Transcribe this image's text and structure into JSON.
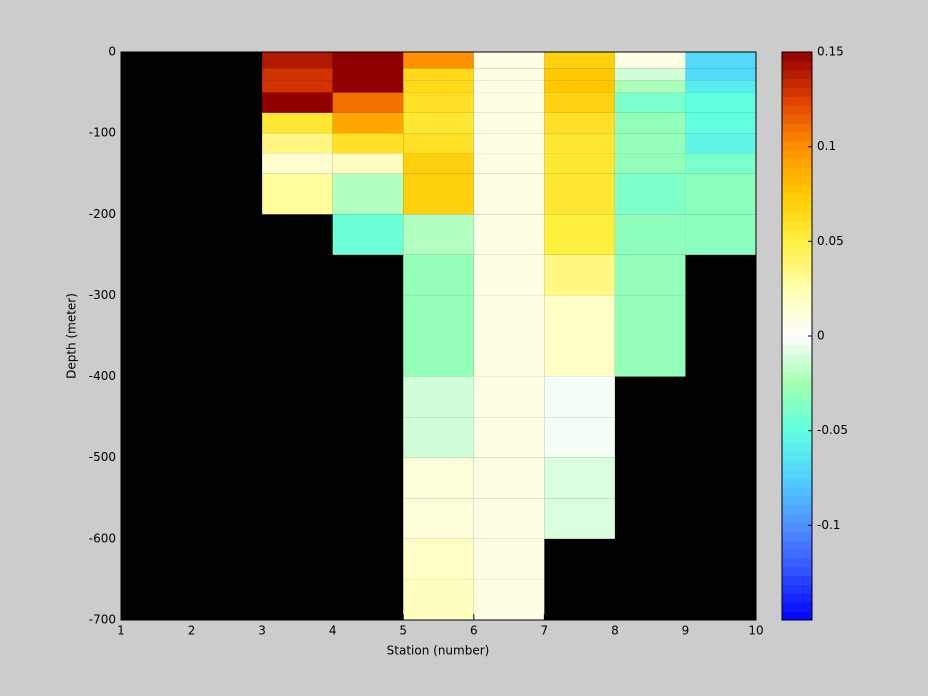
{
  "chart_data": {
    "type": "heatmap",
    "xlabel": "Station (number)",
    "ylabel": "Depth (meter)",
    "x": [
      1,
      2,
      3,
      4,
      5,
      6,
      7,
      8,
      9,
      10
    ],
    "y": [
      0,
      -20,
      -35,
      -50,
      -75,
      -100,
      -125,
      -150,
      -200,
      -250,
      -300,
      -350,
      -400,
      -450,
      -500,
      -550,
      -600,
      -650,
      -700
    ],
    "values": [
      [
        null,
        null,
        0.14,
        0.15,
        0.1,
        0.008,
        0.07,
        0.008,
        -0.07
      ],
      [
        null,
        null,
        0.13,
        0.15,
        0.065,
        0.008,
        0.075,
        -0.012,
        -0.07
      ],
      [
        null,
        null,
        0.13,
        0.15,
        0.065,
        0.008,
        0.075,
        -0.022,
        -0.06
      ],
      [
        null,
        null,
        0.15,
        0.11,
        0.06,
        0.008,
        0.068,
        -0.04,
        -0.05
      ],
      [
        null,
        null,
        0.055,
        0.09,
        0.055,
        0.008,
        0.06,
        -0.03,
        -0.05
      ],
      [
        null,
        null,
        0.035,
        0.06,
        0.06,
        0.008,
        0.055,
        -0.03,
        -0.055
      ],
      [
        null,
        null,
        0.015,
        0.02,
        0.07,
        0.008,
        0.055,
        -0.03,
        -0.04
      ],
      [
        null,
        null,
        0.03,
        -0.02,
        0.07,
        0.008,
        0.055,
        -0.038,
        -0.033
      ],
      [
        null,
        null,
        null,
        -0.045,
        -0.02,
        0.008,
        0.05,
        -0.032,
        -0.033
      ],
      [
        null,
        null,
        null,
        null,
        -0.03,
        0.008,
        0.035,
        -0.03,
        null
      ],
      [
        null,
        null,
        null,
        null,
        -0.03,
        0.008,
        0.018,
        -0.03,
        null
      ],
      [
        null,
        null,
        null,
        null,
        -0.03,
        0.008,
        0.018,
        -0.03,
        null
      ],
      [
        null,
        null,
        null,
        null,
        -0.012,
        0.008,
        -0.003,
        null,
        null
      ],
      [
        null,
        null,
        null,
        null,
        -0.012,
        0.008,
        -0.003,
        null,
        null
      ],
      [
        null,
        null,
        null,
        null,
        0.012,
        0.008,
        -0.01,
        null,
        null
      ],
      [
        null,
        null,
        null,
        null,
        0.012,
        0.008,
        -0.01,
        null,
        null
      ],
      [
        null,
        null,
        null,
        null,
        0.018,
        0.008,
        null,
        null,
        null
      ],
      [
        null,
        null,
        null,
        null,
        0.02,
        0.008,
        null,
        null,
        null
      ]
    ],
    "xlim": [
      1,
      10
    ],
    "xticks": [
      1,
      2,
      3,
      4,
      5,
      6,
      7,
      8,
      9,
      10
    ],
    "ylim": [
      -700,
      0
    ],
    "yticks": [
      0,
      -100,
      -200,
      -300,
      -400,
      -500,
      -600,
      -700
    ],
    "clim": [
      -0.15,
      0.15
    ],
    "cticks": [
      -0.1,
      -0.05,
      0,
      0.05,
      0.1,
      0.15
    ],
    "colormap": [
      "#0000ff",
      "#3050ff",
      "#5090ff",
      "#50d0ff",
      "#60ffe0",
      "#a0ffb0",
      "#ffffff",
      "#ffffb0",
      "#fff040",
      "#ffc800",
      "#ff9000",
      "#e04000",
      "#900000"
    ],
    "missing_color": "#000000"
  }
}
